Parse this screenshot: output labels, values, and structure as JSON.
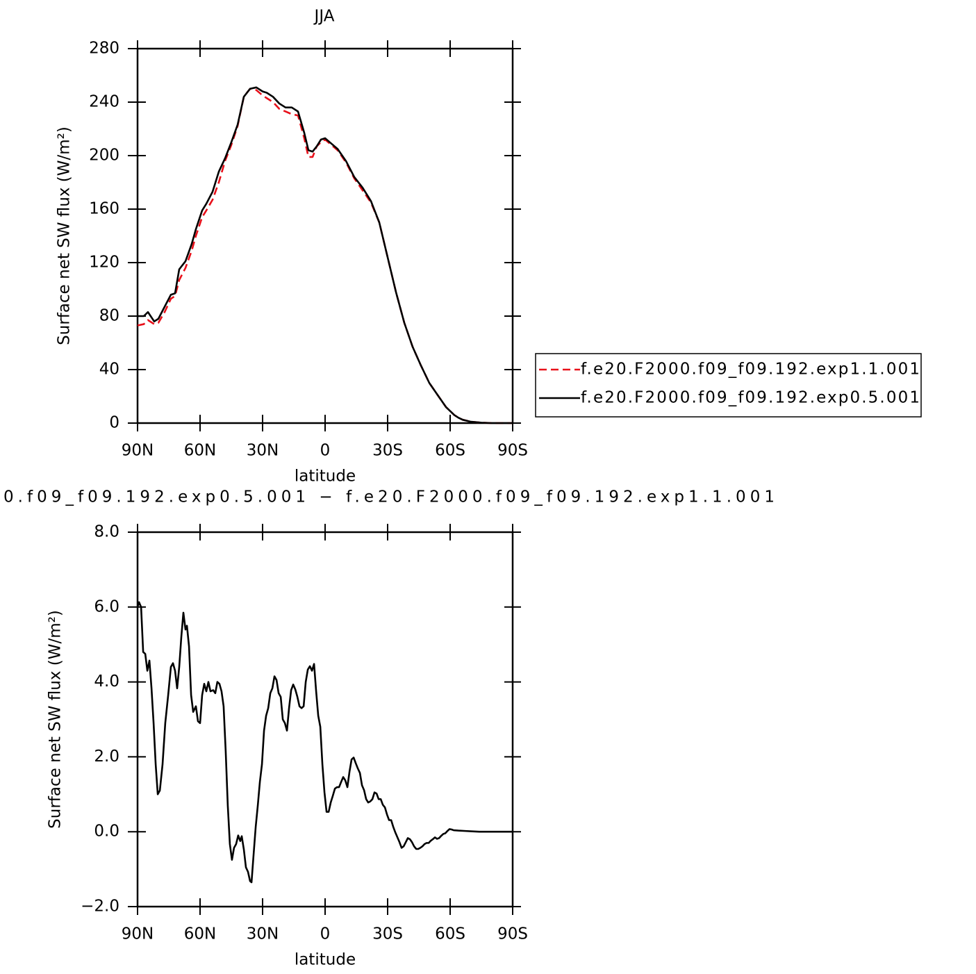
{
  "chart_data": [
    {
      "type": "line",
      "title": "JJA",
      "xlabel": "latitude",
      "ylabel": "Surface net SW flux (W/m²)",
      "xlim": [
        90,
        -90
      ],
      "xticks": [
        {
          "value": 90,
          "label": "90N"
        },
        {
          "value": 60,
          "label": "60N"
        },
        {
          "value": 30,
          "label": "30N"
        },
        0,
        {
          "value": -30,
          "label": "30S"
        },
        {
          "value": -60,
          "label": "60S"
        },
        {
          "value": -90,
          "label": "90S"
        }
      ],
      "ylim": [
        0,
        280
      ],
      "yticks": [
        0,
        40,
        80,
        120,
        160,
        200,
        240,
        280
      ],
      "legend_position": "right",
      "x": [
        90,
        87,
        85,
        82,
        80,
        77,
        74,
        72,
        70,
        67,
        64,
        62,
        59,
        57,
        54,
        51,
        48,
        45,
        42,
        39,
        36,
        33,
        30,
        28,
        25,
        22,
        19,
        16,
        13,
        10,
        8,
        6,
        4,
        2,
        0,
        -3,
        -6,
        -10,
        -14,
        -18,
        -22,
        -26,
        -30,
        -34,
        -38,
        -42,
        -46,
        -50,
        -54,
        -58,
        -62,
        -64,
        -66,
        -70,
        -75,
        -80,
        -85,
        -90
      ],
      "series": [
        {
          "name": "f.e20.F2000.f09_f09.192.exp1.1.001",
          "color": "#e8101a",
          "linestyle": "dashed",
          "values": [
            73,
            74,
            77,
            74,
            75,
            83,
            93,
            95,
            107,
            116,
            129,
            140,
            154,
            159,
            167,
            180,
            196,
            208,
            222,
            244,
            250,
            249,
            245,
            243,
            240,
            235,
            233,
            231,
            230,
            213,
            199,
            199,
            207,
            210,
            212,
            208,
            204,
            195,
            183,
            174,
            165,
            150,
            124,
            98,
            75,
            57,
            43,
            30,
            21,
            12,
            6,
            4,
            2.5,
            1,
            0.3,
            0,
            0,
            0
          ]
        },
        {
          "name": "f.e20.F2000.f09_f09.192.exp0.5.001",
          "color": "#000000",
          "linestyle": "solid",
          "values": [
            80,
            80,
            83,
            76,
            78,
            87,
            96,
            97,
            115,
            121,
            134,
            145,
            159,
            164,
            173,
            188,
            198,
            210,
            223,
            244,
            250,
            251,
            248,
            247,
            244,
            239,
            236,
            236,
            233,
            217,
            204,
            203,
            207,
            212,
            213,
            209,
            205,
            196,
            184,
            176,
            166,
            150,
            124,
            98,
            75,
            57,
            43,
            30,
            21,
            12,
            6,
            4,
            2.5,
            1,
            0.3,
            0,
            0,
            0
          ]
        }
      ]
    },
    {
      "type": "line",
      "title": "0.f09_f09.192.exp0.5.001 − f.e20.F2000.f09_f09.192.exp1.1.001",
      "xlabel": "latitude",
      "ylabel": "Surface net SW flux (W/m²)",
      "xlim": [
        90,
        -90
      ],
      "xticks": [
        {
          "value": 90,
          "label": "90N"
        },
        {
          "value": 60,
          "label": "60N"
        },
        {
          "value": 30,
          "label": "30N"
        },
        0,
        {
          "value": -30,
          "label": "30S"
        },
        {
          "value": -60,
          "label": "60S"
        },
        {
          "value": -90,
          "label": "90S"
        }
      ],
      "ylim": [
        -2,
        8
      ],
      "yticks": [
        {
          "value": -2,
          "label": "−2.0"
        },
        {
          "value": 0,
          "label": "0.0"
        },
        {
          "value": 2,
          "label": "2.0"
        },
        {
          "value": 4,
          "label": "4.0"
        },
        {
          "value": 6,
          "label": "6.0"
        },
        {
          "value": 8,
          "label": "8.0"
        }
      ],
      "x": [
        90,
        89.3,
        88.3,
        87.3,
        86.3,
        85.3,
        84.3,
        83.3,
        82.3,
        81.3,
        80.3,
        79.3,
        78,
        76.7,
        75.3,
        74,
        73,
        72,
        71,
        70,
        69,
        68,
        67,
        66.3,
        65.3,
        64.3,
        63.3,
        62,
        61,
        60,
        59,
        58,
        57,
        56,
        55,
        53.7,
        52.7,
        51.7,
        50.7,
        49.7,
        48.7,
        47.7,
        46.7,
        45.7,
        44.7,
        43.7,
        42.7,
        41.7,
        40.7,
        40,
        39,
        38,
        37,
        36,
        35.3,
        34.3,
        33.3,
        32.3,
        31.3,
        30.3,
        29.3,
        28.3,
        27.3,
        26.3,
        25.3,
        24.3,
        23.3,
        22.3,
        21.3,
        20.3,
        19.3,
        18.3,
        17.3,
        16.3,
        15.3,
        14.3,
        13.3,
        12.3,
        11.3,
        10.3,
        9.3,
        8.3,
        7.3,
        6.3,
        5.3,
        4.3,
        3.3,
        2.3,
        1.3,
        0.3,
        -0.7,
        -1.7,
        -2.7,
        -3.7,
        -4.7,
        -5.7,
        -6.7,
        -7.7,
        -8.7,
        -9.7,
        -10.7,
        -11.7,
        -12.7,
        -13.7,
        -14.7,
        -15.7,
        -16.7,
        -17.7,
        -18.7,
        -19.7,
        -20.7,
        -21.7,
        -22.7,
        -23.7,
        -24.7,
        -25.7,
        -26.7,
        -27.7,
        -28.7,
        -29.7,
        -30.7,
        -31.7,
        -32.7,
        -33.7,
        -34.7,
        -35.7,
        -36.7,
        -37.7,
        -38.7,
        -39.7,
        -40.7,
        -41.7,
        -42.7,
        -43.7,
        -44.7,
        -45.7,
        -46.7,
        -47.7,
        -48.7,
        -49.7,
        -50.7,
        -51.7,
        -52.7,
        -53.7,
        -54.7,
        -55.7,
        -56.7,
        -57.7,
        -58.7,
        -59.7,
        -60.7,
        -61.7,
        -64,
        -67.3,
        -70.7,
        -74,
        -90
      ],
      "series": [
        {
          "color": "#000000",
          "linestyle": "solid",
          "values": [
            6.0,
            6.13,
            6.0,
            4.8,
            4.75,
            4.3,
            4.57,
            3.83,
            2.9,
            1.8,
            1.0,
            1.1,
            1.8,
            2.9,
            3.65,
            4.4,
            4.5,
            4.3,
            3.83,
            4.4,
            5.2,
            5.85,
            5.4,
            5.5,
            4.95,
            3.65,
            3.2,
            3.35,
            2.95,
            2.9,
            3.65,
            3.95,
            3.75,
            4.0,
            3.75,
            3.78,
            3.7,
            4.0,
            3.95,
            3.75,
            3.35,
            2.15,
            0.7,
            -0.33,
            -0.75,
            -0.43,
            -0.33,
            -0.1,
            -0.25,
            -0.12,
            -0.47,
            -0.95,
            -1.07,
            -1.32,
            -1.35,
            -0.6,
            0.13,
            0.7,
            1.33,
            1.8,
            2.7,
            3.1,
            3.3,
            3.7,
            3.83,
            4.15,
            4.05,
            3.7,
            3.6,
            3.0,
            2.9,
            2.7,
            3.3,
            3.78,
            3.93,
            3.8,
            3.6,
            3.35,
            3.3,
            3.35,
            4.0,
            4.33,
            4.42,
            4.3,
            4.48,
            3.75,
            3.1,
            2.8,
            1.8,
            1.05,
            0.53,
            0.53,
            0.78,
            0.96,
            1.15,
            1.19,
            1.19,
            1.33,
            1.46,
            1.37,
            1.19,
            1.6,
            1.93,
            1.98,
            1.83,
            1.69,
            1.57,
            1.24,
            1.11,
            0.87,
            0.78,
            0.81,
            0.87,
            1.05,
            1.02,
            0.87,
            0.87,
            0.72,
            0.65,
            0.46,
            0.31,
            0.31,
            0.13,
            -0.02,
            -0.15,
            -0.28,
            -0.43,
            -0.39,
            -0.28,
            -0.17,
            -0.2,
            -0.28,
            -0.39,
            -0.46,
            -0.46,
            -0.43,
            -0.39,
            -0.33,
            -0.3,
            -0.3,
            -0.24,
            -0.2,
            -0.15,
            -0.19,
            -0.17,
            -0.11,
            -0.06,
            -0.04,
            0.02,
            0.07,
            0.06,
            0.04,
            0.03,
            0.02,
            0.01,
            0,
            0
          ]
        }
      ]
    }
  ]
}
